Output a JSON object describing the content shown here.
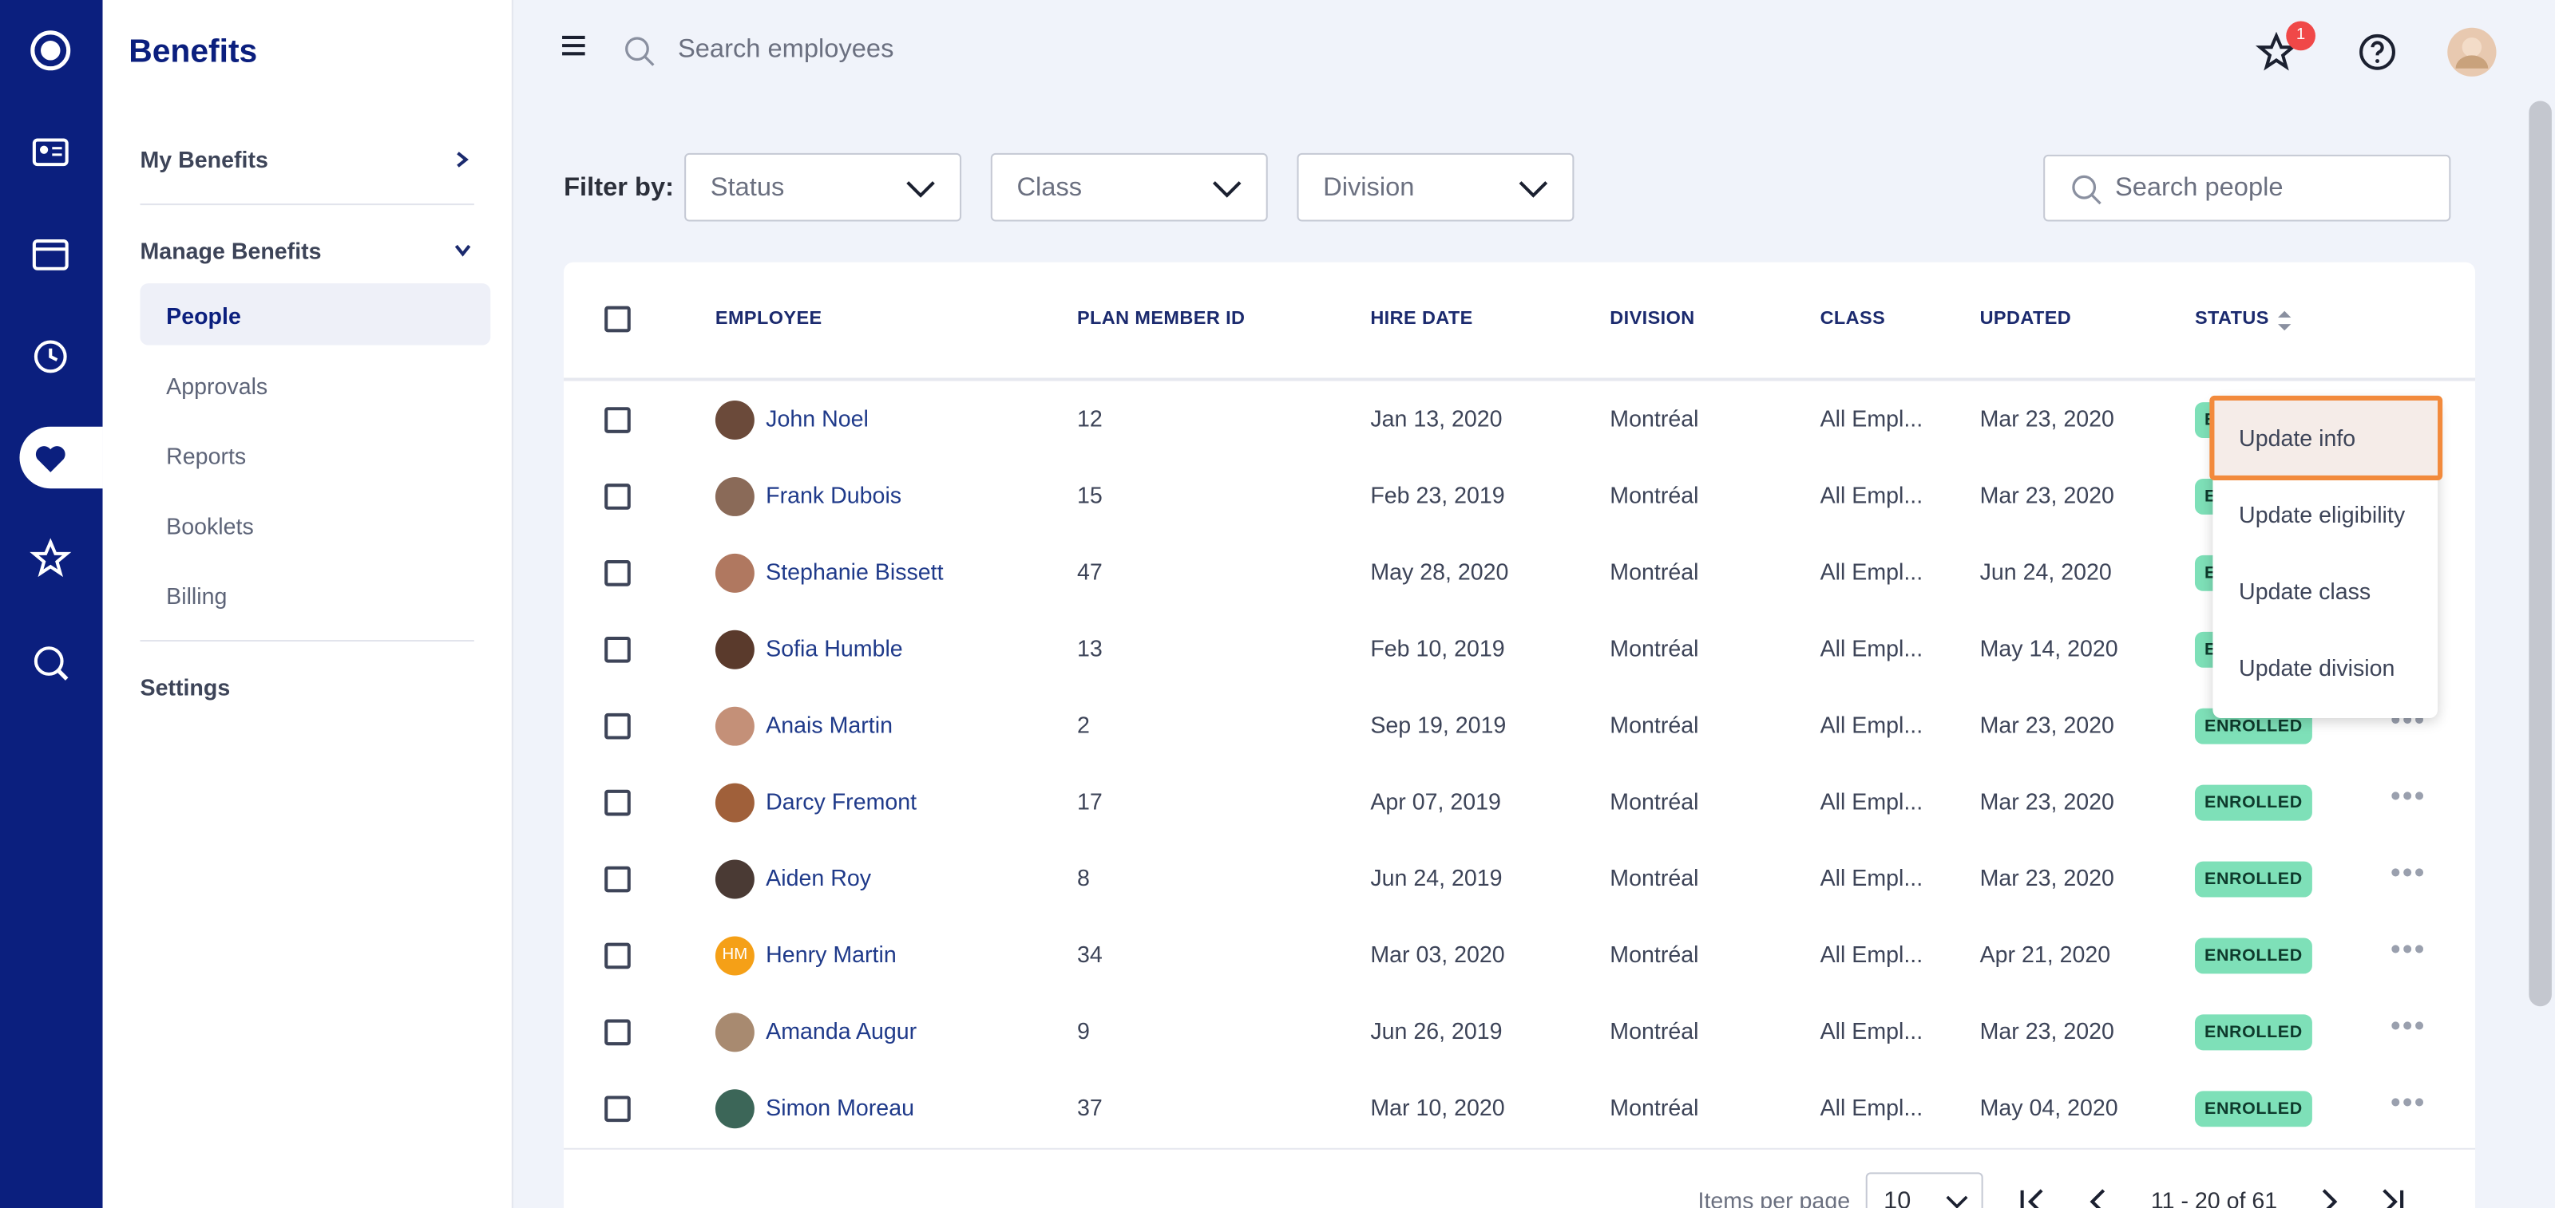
{
  "sidebar": {
    "title": "Benefits",
    "items": [
      "My Benefits",
      "Manage Benefits",
      "People",
      "Approvals",
      "Reports",
      "Booklets",
      "Billing",
      "Settings"
    ]
  },
  "header": {
    "search_placeholder": "Search employees",
    "notification_count": "1"
  },
  "filters": {
    "label": "Filter by:",
    "dropdowns": [
      "Status",
      "Class",
      "Division"
    ],
    "search_placeholder": "Search people"
  },
  "table": {
    "columns": [
      "EMPLOYEE",
      "PLAN MEMBER ID",
      "HIRE DATE",
      "DIVISION",
      "CLASS",
      "UPDATED",
      "STATUS"
    ],
    "rows": [
      [
        "John Noel",
        "12",
        "Jan 13, 2020",
        "Montréal",
        "All Empl...",
        "Mar 23, 2020",
        "ENROLLED"
      ],
      [
        "Frank Dubois",
        "15",
        "Feb 23, 2019",
        "Montréal",
        "All Empl...",
        "Mar 23, 2020",
        "ENROLLED"
      ],
      [
        "Stephanie Bissett",
        "47",
        "May 28, 2020",
        "Montréal",
        "All Empl...",
        "Jun 24, 2020",
        "ENROLLED"
      ],
      [
        "Sofia Humble",
        "13",
        "Feb 10, 2019",
        "Montréal",
        "All Empl...",
        "May 14, 2020",
        "ENROLLED"
      ],
      [
        "Anais Martin",
        "2",
        "Sep 19, 2019",
        "Montréal",
        "All Empl...",
        "Mar 23, 2020",
        "ENROLLED"
      ],
      [
        "Darcy Fremont",
        "17",
        "Apr 07, 2019",
        "Montréal",
        "All Empl...",
        "Mar 23, 2020",
        "ENROLLED"
      ],
      [
        "Aiden Roy",
        "8",
        "Jun 24, 2019",
        "Montréal",
        "All Empl...",
        "Mar 23, 2020",
        "ENROLLED"
      ],
      [
        "Henry Martin",
        "34",
        "Mar 03, 2020",
        "Montréal",
        "All Empl...",
        "Apr 21, 2020",
        "ENROLLED"
      ],
      [
        "Amanda Augur",
        "9",
        "Jun 26, 2019",
        "Montréal",
        "All Empl...",
        "Mar 23, 2020",
        "ENROLLED"
      ],
      [
        "Simon Moreau",
        "37",
        "Mar 10, 2020",
        "Montréal",
        "All Empl...",
        "May 04, 2020",
        "ENROLLED"
      ]
    ],
    "initials": {
      "7": "HM"
    }
  },
  "row_menu": [
    "Update info",
    "Update eligibility",
    "Update class",
    "Update division"
  ],
  "pagination": {
    "label": "Items per page",
    "per_page": "10",
    "range": "11 - 20 of 61"
  }
}
